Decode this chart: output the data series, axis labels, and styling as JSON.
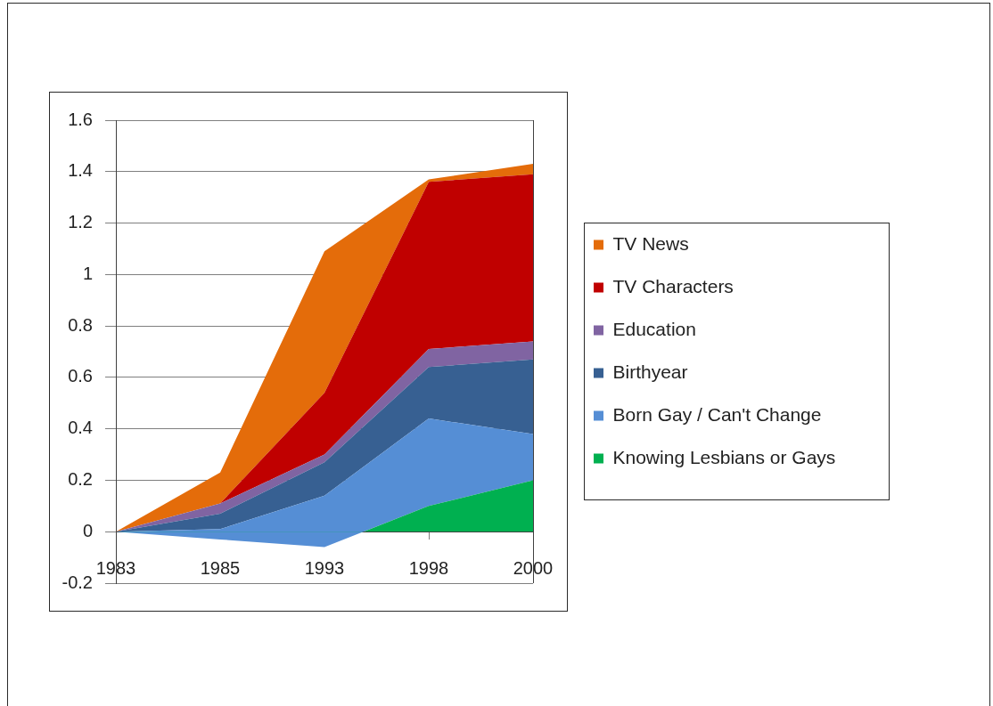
{
  "chart_data": {
    "type": "area",
    "stacked": true,
    "categories": [
      "1983",
      "1985",
      "1993",
      "1998",
      "2000"
    ],
    "series": [
      {
        "name": "Knowing Lesbians or Gays",
        "color": "#00b050",
        "values": [
          0,
          -0.03,
          -0.06,
          0.1,
          0.2
        ]
      },
      {
        "name": "Born Gay / Can't Change",
        "color": "#558ed5",
        "values": [
          0,
          0.04,
          0.2,
          0.34,
          0.18
        ]
      },
      {
        "name": "Birthyear",
        "color": "#376092",
        "values": [
          0,
          0.06,
          0.13,
          0.2,
          0.29
        ]
      },
      {
        "name": "Education",
        "color": "#8064a2",
        "values": [
          0,
          0.04,
          0.03,
          0.07,
          0.07
        ]
      },
      {
        "name": "TV Characters",
        "color": "#c00000",
        "values": [
          0,
          0,
          0.24,
          0.65,
          0.65
        ]
      },
      {
        "name": "TV News",
        "color": "#e46c0a",
        "values": [
          0,
          0.12,
          0.55,
          0.01,
          0.04
        ]
      }
    ],
    "ylim": [
      -0.2,
      1.6
    ],
    "yticks": [
      -0.2,
      0,
      0.2,
      0.4,
      0.6,
      0.8,
      1,
      1.2,
      1.4,
      1.6
    ],
    "grid": "y",
    "legend": "right"
  }
}
